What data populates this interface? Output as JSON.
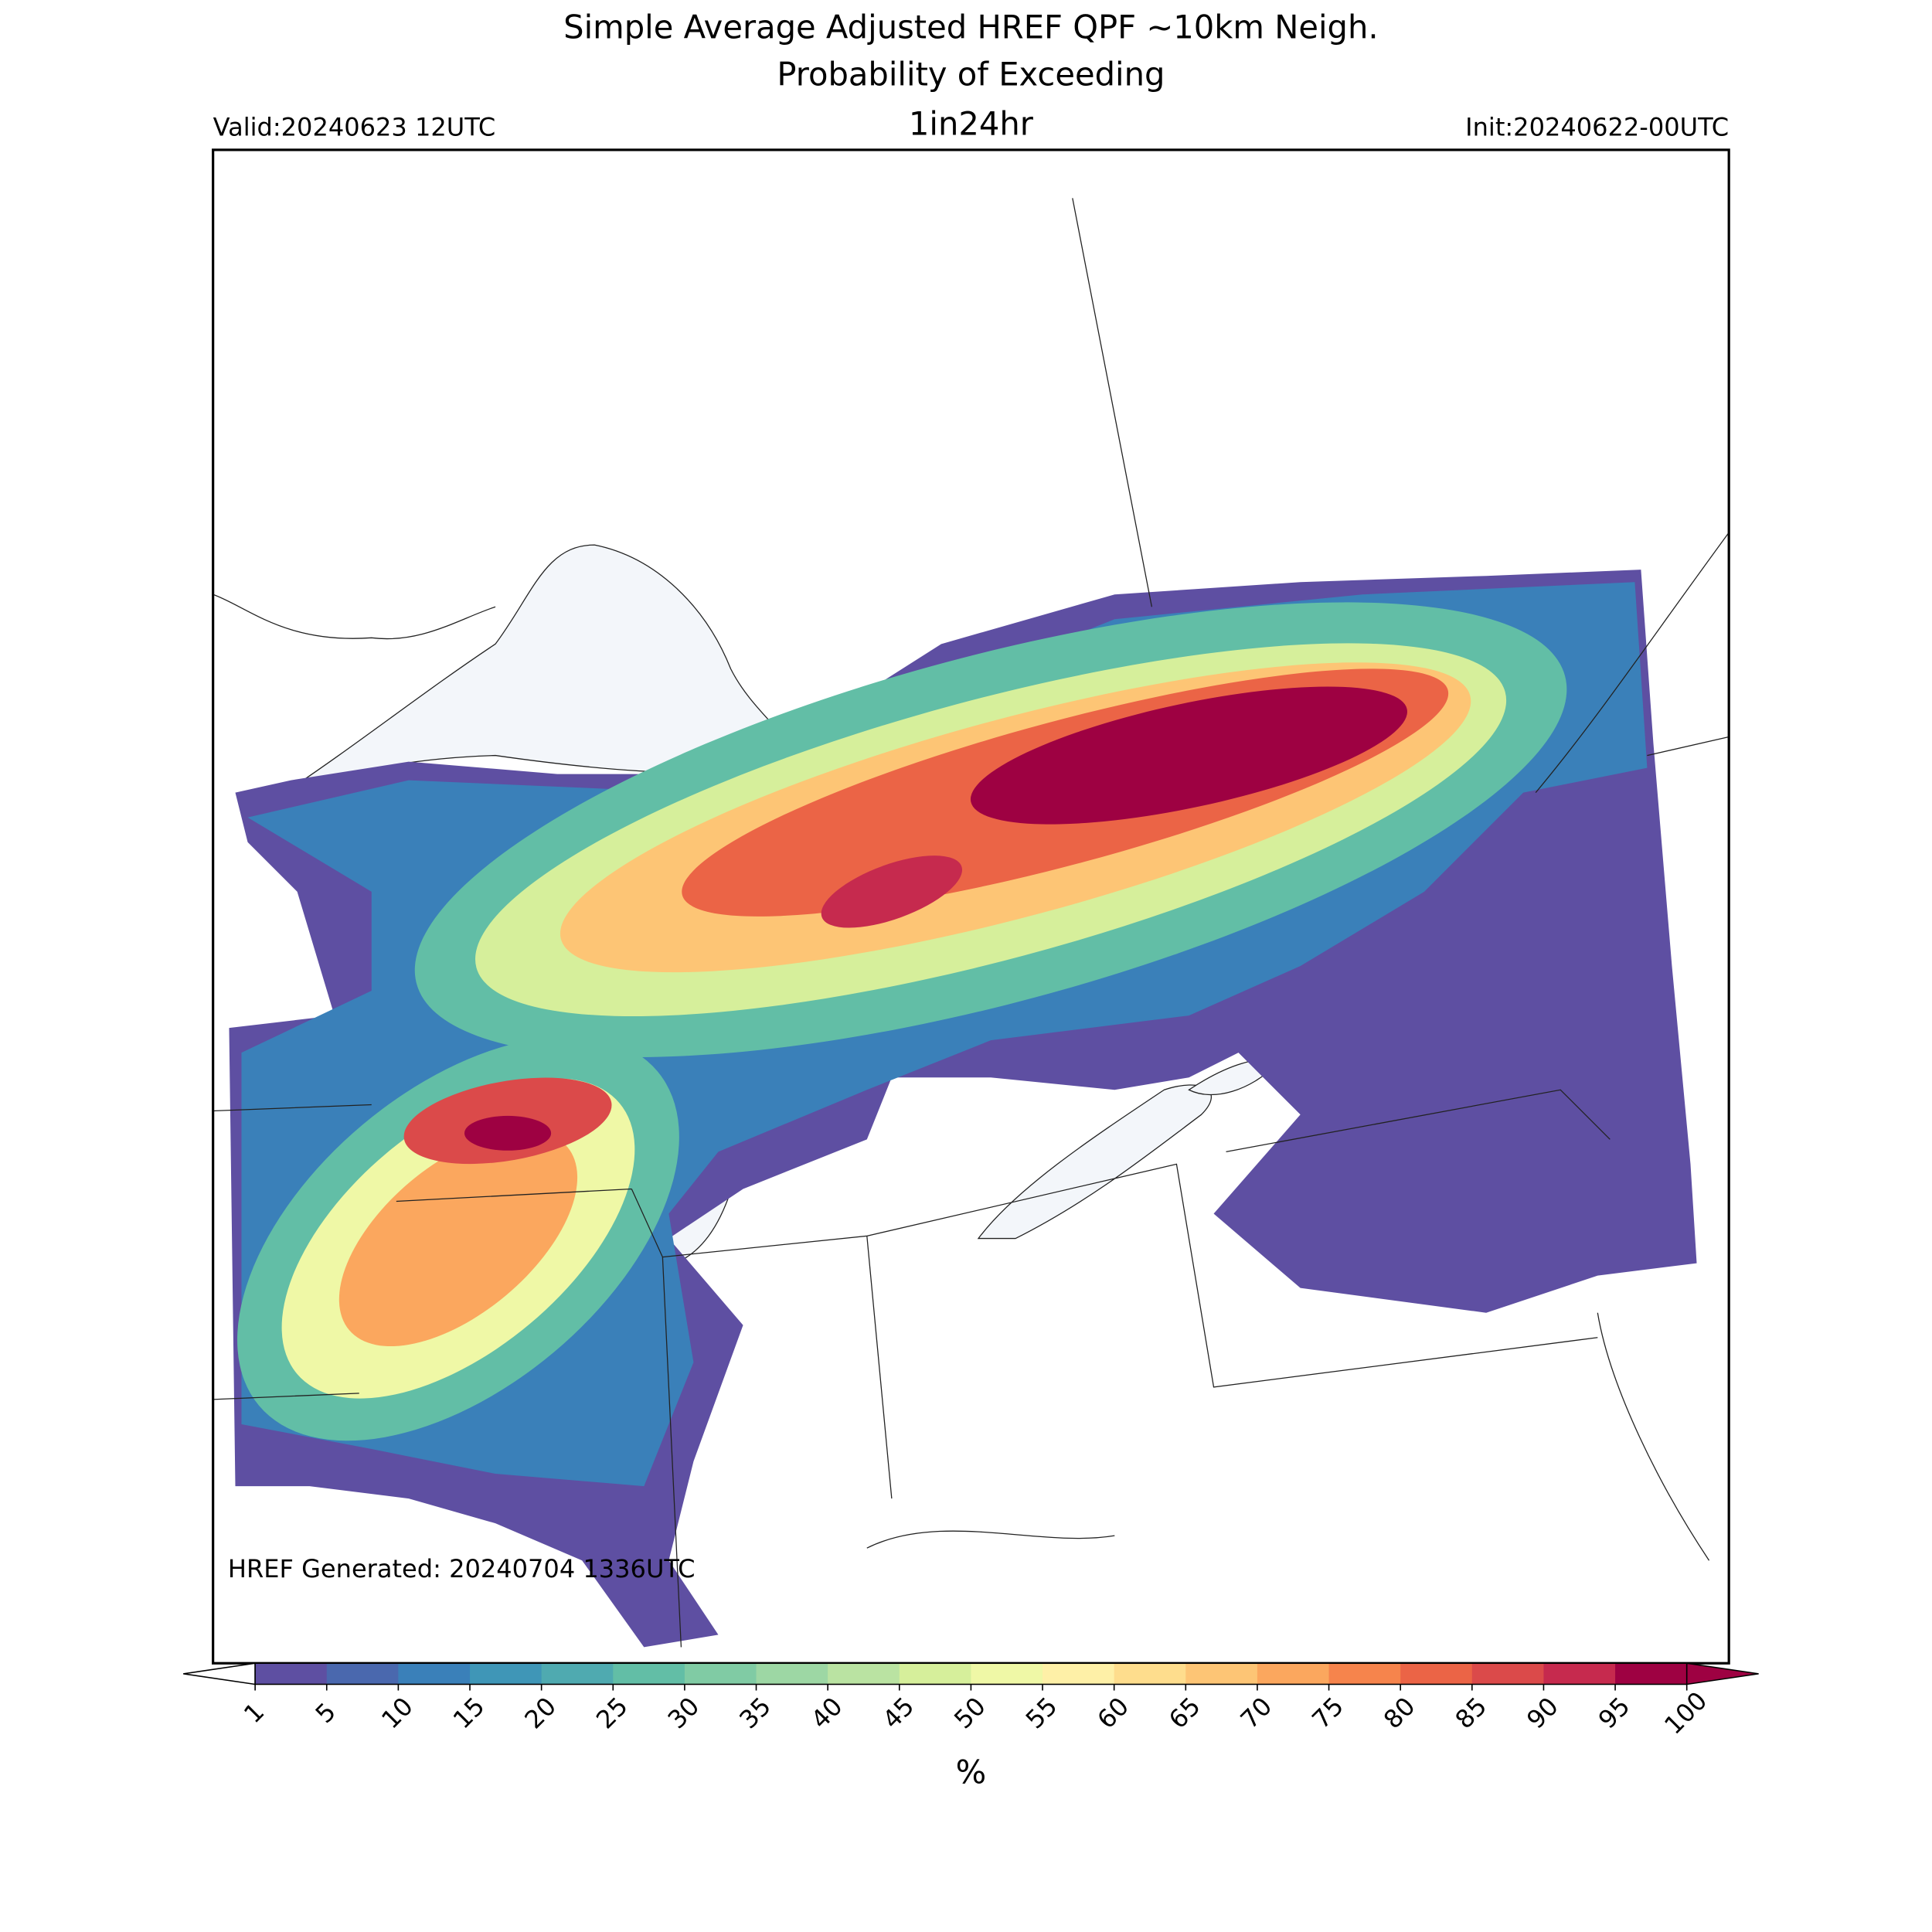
{
  "header": {
    "title_lines": [
      "Simple Average Adjusted HREF QPF ~10km Neigh.",
      "Probability of Exceeding"
    ],
    "valid": "Valid:20240623 12UTC",
    "subtitle": "1in24hr",
    "init": "Init:20240622-00UTC"
  },
  "footer": {
    "generated": "HREF Generated: 20240704 1336UTC"
  },
  "colorbar": {
    "levels": [
      1,
      5,
      10,
      15,
      20,
      25,
      30,
      35,
      40,
      45,
      50,
      55,
      60,
      65,
      70,
      75,
      80,
      85,
      90,
      95,
      100
    ],
    "colors": [
      "#5e4fa2",
      "#4a68ae",
      "#3a80b9",
      "#3f96b7",
      "#4faab0",
      "#62bea6",
      "#80cba4",
      "#9dd7a4",
      "#bae3a2",
      "#d6ef9b",
      "#eff8a6",
      "#fef0a7",
      "#fedd8d",
      "#fdc575",
      "#fba75e",
      "#f6844c",
      "#eb6446",
      "#db4a4a",
      "#c62a4e",
      "#9e0142"
    ],
    "under_color": "#ffffff",
    "over_color": "#9e0142",
    "unit": "%"
  }
}
